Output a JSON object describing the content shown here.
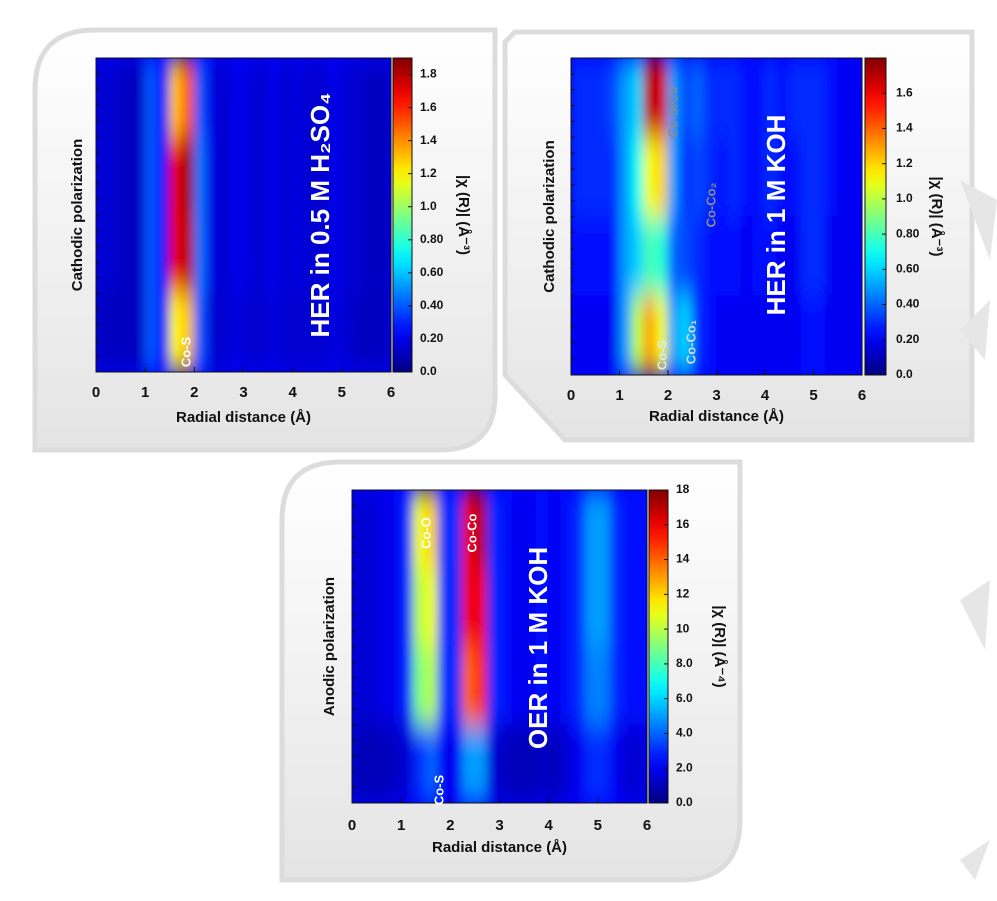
{
  "chart_data": [
    {
      "type": "heatmap",
      "title": "HER in 0.5 M H₂SO₄",
      "xlabel": "Radial distance (Å)",
      "ylabel": "Cathodic polarization",
      "colorbar_label": "|χ (R)| (Å⁻³)",
      "annotations": [
        "Co-S"
      ],
      "xlim": [
        0,
        6
      ],
      "xticks": [
        0,
        1,
        2,
        3,
        4,
        5,
        6
      ],
      "zlim": [
        0,
        1.9
      ],
      "zticks": [
        {
          "value": 0,
          "label": "0.0"
        },
        {
          "value": 0.2,
          "label": "0.20"
        },
        {
          "value": 0.4,
          "label": "0.40"
        },
        {
          "value": 0.6,
          "label": "0.60"
        },
        {
          "value": 0.8,
          "label": "0.80"
        },
        {
          "value": 1,
          "label": "1.0"
        },
        1.2,
        1.4,
        1.6,
        1.8
      ],
      "x": [
        0.125,
        0.375,
        0.625,
        0.875,
        1.125,
        1.375,
        1.625,
        1.875,
        2.125,
        2.375,
        2.625,
        2.875,
        3.125,
        3.375,
        3.625,
        3.875,
        4.125,
        4.375,
        4.625,
        4.875,
        5.125,
        5.375,
        5.625,
        5.875
      ],
      "z": [
        [
          0.15,
          0.15,
          0.12,
          0.12,
          0.4,
          0.25,
          1.3,
          1.5,
          0.4,
          0.18,
          0.15,
          0.2,
          0.18,
          0.15,
          0.2,
          0.15,
          0.18,
          0.15,
          0.15,
          0.2,
          0.15,
          0.15,
          0.12,
          0.12
        ],
        [
          0.15,
          0.15,
          0.12,
          0.12,
          0.4,
          0.25,
          1.7,
          1.85,
          0.45,
          0.18,
          0.15,
          0.2,
          0.18,
          0.15,
          0.2,
          0.15,
          0.18,
          0.15,
          0.15,
          0.2,
          0.15,
          0.15,
          0.12,
          0.12
        ],
        [
          0.15,
          0.15,
          0.12,
          0.12,
          0.4,
          0.25,
          1.7,
          1.8,
          0.45,
          0.18,
          0.15,
          0.2,
          0.18,
          0.15,
          0.2,
          0.15,
          0.18,
          0.15,
          0.15,
          0.2,
          0.15,
          0.15,
          0.12,
          0.12
        ],
        [
          0.12,
          0.12,
          0.12,
          0.12,
          0.4,
          0.25,
          1.2,
          1.3,
          0.4,
          0.15,
          0.15,
          0.18,
          0.15,
          0.15,
          0.18,
          0.15,
          0.15,
          0.15,
          0.15,
          0.18,
          0.15,
          0.12,
          0.12,
          0.12
        ]
      ]
    },
    {
      "type": "heatmap",
      "title": "HER in 1 M KOH",
      "xlabel": "Radial distance (Å)",
      "ylabel": "Cathodic polarization",
      "colorbar_label": "|χ (R)| (Å⁻³)",
      "annotations": [
        "Co-S/Co",
        "Co-Co₂",
        "Co-Co₁",
        "Co-S"
      ],
      "xlim": [
        0,
        6
      ],
      "xticks": [
        0,
        1,
        2,
        3,
        4,
        5,
        6
      ],
      "zlim": [
        0,
        1.8
      ],
      "zticks": [
        {
          "value": 0,
          "label": "0.0"
        },
        {
          "value": 0.2,
          "label": "0.20"
        },
        {
          "value": 0.4,
          "label": "0.40"
        },
        {
          "value": 0.6,
          "label": "0.60"
        },
        {
          "value": 0.8,
          "label": "0.80"
        },
        {
          "value": 1,
          "label": "1.0"
        },
        1.2,
        1.4,
        1.6
      ],
      "x": [
        0.125,
        0.375,
        0.625,
        0.875,
        1.125,
        1.375,
        1.625,
        1.875,
        2.125,
        2.375,
        2.625,
        2.875,
        3.125,
        3.375,
        3.625,
        3.875,
        4.125,
        4.375,
        4.625,
        4.875,
        5.125,
        5.375,
        5.625,
        5.875
      ],
      "z": [
        [
          0.3,
          0.3,
          0.3,
          0.35,
          0.5,
          0.6,
          1.7,
          1.65,
          0.5,
          0.35,
          0.4,
          0.3,
          0.3,
          0.3,
          0.25,
          0.25,
          0.3,
          0.25,
          0.3,
          0.3,
          0.3,
          0.25,
          0.2,
          0.2
        ],
        [
          0.3,
          0.3,
          0.3,
          0.3,
          0.5,
          0.7,
          1.1,
          1.2,
          0.5,
          0.3,
          0.35,
          0.3,
          0.25,
          0.3,
          0.25,
          0.25,
          0.3,
          0.25,
          0.25,
          0.3,
          0.3,
          0.25,
          0.2,
          0.2
        ],
        [
          0.25,
          0.25,
          0.25,
          0.25,
          0.5,
          0.6,
          0.8,
          0.75,
          0.4,
          0.35,
          0.3,
          0.25,
          0.25,
          0.25,
          0.2,
          0.25,
          0.25,
          0.2,
          0.2,
          0.3,
          0.3,
          0.2,
          0.2,
          0.2
        ],
        [
          0.2,
          0.2,
          0.2,
          0.2,
          0.5,
          1.0,
          1.3,
          1.1,
          0.5,
          0.6,
          0.3,
          0.25,
          0.2,
          0.2,
          0.2,
          0.2,
          0.2,
          0.2,
          0.2,
          0.25,
          0.25,
          0.2,
          0.2,
          0.2
        ]
      ]
    },
    {
      "type": "heatmap",
      "title": "OER in 1 M KOH",
      "xlabel": "Radial distance (Å)",
      "ylabel": "Anodic polarization",
      "colorbar_label": "|χ (R)| (Å⁻⁴)",
      "annotations": [
        "Co-O",
        "Co-Co",
        "Co-S"
      ],
      "xlim": [
        0,
        6
      ],
      "xticks": [
        0,
        1,
        2,
        3,
        4,
        5,
        6
      ],
      "zlim": [
        0,
        18
      ],
      "zticks": [
        {
          "value": 0,
          "label": "0.0"
        },
        {
          "value": 2,
          "label": "2.0"
        },
        {
          "value": 4,
          "label": "4.0"
        },
        {
          "value": 6,
          "label": "6.0"
        },
        {
          "value": 8,
          "label": "8.0"
        },
        10,
        12,
        14,
        16,
        18
      ],
      "x": [
        0.125,
        0.375,
        0.625,
        0.875,
        1.125,
        1.375,
        1.625,
        1.875,
        2.125,
        2.375,
        2.625,
        2.875,
        3.125,
        3.375,
        3.625,
        3.875,
        4.125,
        4.375,
        4.625,
        4.875,
        5.125,
        5.375,
        5.625,
        5.875
      ],
      "z": [
        [
          1.5,
          1.5,
          1.8,
          2,
          3,
          11,
          12,
          3,
          3,
          16,
          17,
          3,
          2.5,
          2,
          2,
          2.5,
          2,
          2.5,
          3,
          5,
          5,
          3,
          2.5,
          2.5
        ],
        [
          1.5,
          1.5,
          1.8,
          2,
          3,
          10,
          11,
          3,
          3,
          16,
          16,
          3,
          2.5,
          2,
          2,
          2.5,
          2,
          2.5,
          3,
          5,
          5,
          3,
          2.5,
          2.5
        ],
        [
          1.5,
          1.5,
          1.8,
          2,
          3,
          9,
          10,
          3,
          3,
          14,
          15,
          3,
          2.5,
          2,
          2,
          2.5,
          2,
          2.5,
          3,
          4.5,
          4.5,
          3,
          2.5,
          2.5
        ],
        [
          1,
          1,
          1,
          1.2,
          1.5,
          3,
          4,
          2,
          2,
          5,
          5,
          1.5,
          1.2,
          1,
          1,
          1.2,
          1,
          1.5,
          2,
          3,
          3,
          2,
          1.5,
          1.5
        ]
      ]
    }
  ]
}
